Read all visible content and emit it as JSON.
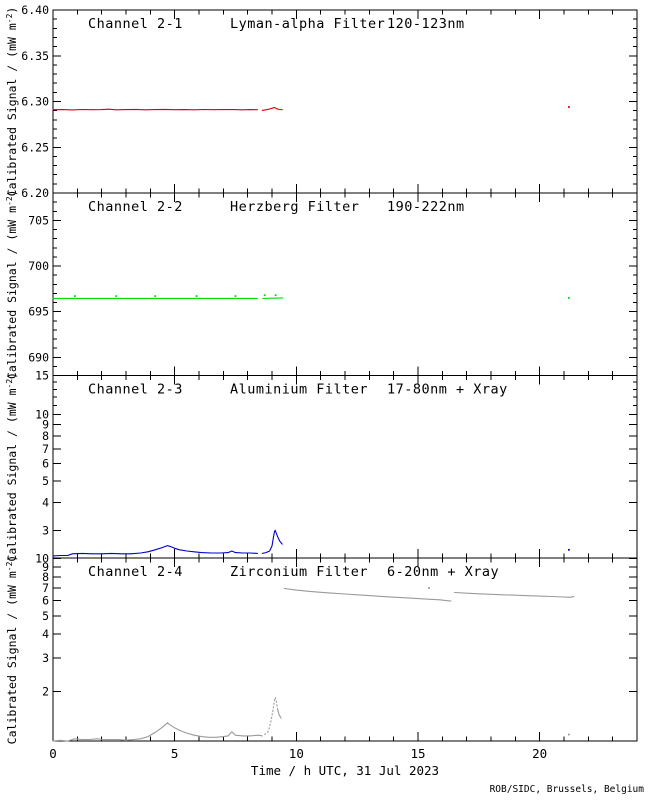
{
  "figure": {
    "xlabel": "Time / h UTC, 31 Jul 2023",
    "credit": "ROB/SIDC, Brussels, Belgium",
    "ylabel_main": "Calibrated Signal / (mW m",
    "ylabel_sup": "-2",
    "ylabel_end": ")",
    "background_color": "#ffffff",
    "axis_color": "#000000",
    "x_range": [
      0,
      24
    ],
    "xticks": [
      {
        "v": 0,
        "label": "0"
      },
      {
        "v": 5,
        "label": "5"
      },
      {
        "v": 10,
        "label": "10"
      },
      {
        "v": 15,
        "label": "15"
      },
      {
        "v": 20,
        "label": "20"
      }
    ]
  },
  "chart_data": [
    {
      "id": "channel-2-1",
      "type": "line",
      "channel": "Channel 2-1",
      "filter": "Lyman-alpha Filter",
      "wavelength": "120-123nm",
      "color": "#dd0000",
      "yscale": "linear",
      "ylim": [
        6.2,
        6.4
      ],
      "yticks": [
        {
          "v": 6.2,
          "label": "6.20"
        },
        {
          "v": 6.25,
          "label": "6.25"
        },
        {
          "v": 6.3,
          "label": "6.30"
        },
        {
          "v": 6.35,
          "label": "6.35"
        },
        {
          "v": 6.4,
          "label": "6.40"
        }
      ],
      "yticks_minor": [
        6.21,
        6.22,
        6.23,
        6.24,
        6.26,
        6.27,
        6.28,
        6.29,
        6.31,
        6.32,
        6.33,
        6.34,
        6.36,
        6.37,
        6.38,
        6.39
      ],
      "series": [
        {
          "name": "pre-gap",
          "style": "solid",
          "points": [
            [
              0,
              6.291
            ],
            [
              0.4,
              6.2912
            ],
            [
              0.8,
              6.2908
            ],
            [
              1.2,
              6.2913
            ],
            [
              1.6,
              6.291
            ],
            [
              2.0,
              6.2912
            ],
            [
              2.3,
              6.2916
            ],
            [
              2.6,
              6.2909
            ],
            [
              3.0,
              6.2911
            ],
            [
              3.4,
              6.2914
            ],
            [
              3.8,
              6.2909
            ],
            [
              4.2,
              6.2912
            ],
            [
              4.6,
              6.2914
            ],
            [
              5.0,
              6.291
            ],
            [
              5.4,
              6.2912
            ],
            [
              5.8,
              6.2909
            ],
            [
              6.2,
              6.2913
            ],
            [
              6.6,
              6.291
            ],
            [
              7.0,
              6.2913
            ],
            [
              7.4,
              6.2911
            ],
            [
              7.8,
              6.2909
            ],
            [
              8.1,
              6.2912
            ],
            [
              8.4,
              6.291
            ]
          ]
        },
        {
          "name": "post-gap",
          "style": "solid",
          "points": [
            [
              8.6,
              6.2903
            ],
            [
              8.8,
              6.2912
            ],
            [
              9.0,
              6.2926
            ],
            [
              9.1,
              6.2934
            ],
            [
              9.2,
              6.292
            ],
            [
              9.3,
              6.2913
            ],
            [
              9.42,
              6.291
            ]
          ]
        }
      ],
      "dots": [
        [
          21.2,
          6.294
        ]
      ]
    },
    {
      "id": "channel-2-2",
      "type": "line",
      "channel": "Channel 2-2",
      "filter": "Herzberg Filter",
      "wavelength": "190-222nm",
      "color": "#00dd00",
      "yscale": "linear",
      "ylim": [
        688,
        708
      ],
      "yticks": [
        {
          "v": 690,
          "label": "690"
        },
        {
          "v": 695,
          "label": "695"
        },
        {
          "v": 700,
          "label": "700"
        },
        {
          "v": 705,
          "label": "705"
        }
      ],
      "yticks_minor": [
        689,
        691,
        692,
        693,
        694,
        696,
        697,
        698,
        699,
        701,
        702,
        703,
        704,
        706,
        707
      ],
      "series": [
        {
          "name": "pre-gap",
          "style": "solid",
          "points": [
            [
              0,
              696.45
            ],
            [
              8.4,
              696.45
            ]
          ]
        },
        {
          "name": "post-gap",
          "style": "solid",
          "points": [
            [
              8.62,
              696.45
            ],
            [
              9.45,
              696.5
            ]
          ]
        }
      ],
      "dots": [
        [
          0.9,
          696.7
        ],
        [
          2.6,
          696.7
        ],
        [
          4.2,
          696.7
        ],
        [
          5.9,
          696.7
        ],
        [
          7.5,
          696.7
        ],
        [
          8.7,
          696.8
        ],
        [
          9.15,
          696.8
        ],
        [
          21.2,
          696.5
        ]
      ]
    },
    {
      "id": "channel-2-3",
      "type": "line",
      "channel": "Channel 2-3",
      "filter": "Aluminium Filter",
      "wavelength": "17-80nm + Xray",
      "color": "#0000cc",
      "yscale": "log",
      "ylim": [
        2.25,
        15
      ],
      "yticks": [
        {
          "v": 3,
          "label": "3"
        },
        {
          "v": 4,
          "label": "4"
        },
        {
          "v": 5,
          "label": "5"
        },
        {
          "v": 6,
          "label": "6"
        },
        {
          "v": 7,
          "label": "7"
        },
        {
          "v": 8,
          "label": "8"
        },
        {
          "v": 9,
          "label": "9"
        },
        {
          "v": 10,
          "label": "10"
        },
        {
          "v": 15,
          "label": "15"
        }
      ],
      "yticks_minor": [
        11,
        12,
        13,
        14
      ],
      "series": [
        {
          "name": "pre-gap",
          "style": "solid",
          "points": [
            [
              0,
              2.3
            ],
            [
              0.3,
              2.31
            ],
            [
              0.6,
              2.31
            ],
            [
              0.8,
              2.35
            ],
            [
              1.2,
              2.36
            ],
            [
              1.6,
              2.35
            ],
            [
              2.0,
              2.35
            ],
            [
              2.4,
              2.36
            ],
            [
              2.8,
              2.35
            ],
            [
              3.2,
              2.35
            ],
            [
              3.6,
              2.37
            ],
            [
              3.9,
              2.4
            ],
            [
              4.2,
              2.45
            ],
            [
              4.5,
              2.51
            ],
            [
              4.7,
              2.56
            ],
            [
              4.8,
              2.54
            ],
            [
              5.0,
              2.49
            ],
            [
              5.2,
              2.45
            ],
            [
              5.5,
              2.42
            ],
            [
              5.8,
              2.4
            ],
            [
              6.1,
              2.38
            ],
            [
              6.5,
              2.37
            ],
            [
              6.9,
              2.37
            ],
            [
              7.2,
              2.38
            ],
            [
              7.35,
              2.42
            ],
            [
              7.5,
              2.38
            ],
            [
              7.8,
              2.37
            ],
            [
              8.1,
              2.37
            ],
            [
              8.4,
              2.36
            ]
          ]
        },
        {
          "name": "flare-spike",
          "style": "solid",
          "points": [
            [
              8.6,
              2.36
            ],
            [
              8.75,
              2.38
            ],
            [
              8.9,
              2.42
            ],
            [
              9.0,
              2.55
            ],
            [
              9.05,
              2.75
            ],
            [
              9.1,
              2.95
            ],
            [
              9.13,
              3.0
            ],
            [
              9.18,
              2.9
            ],
            [
              9.25,
              2.78
            ],
            [
              9.32,
              2.68
            ],
            [
              9.42,
              2.6
            ]
          ]
        }
      ],
      "dots": [
        [
          21.2,
          2.45
        ]
      ]
    },
    {
      "id": "channel-2-4",
      "type": "line",
      "channel": "Channel 2-4",
      "filter": "Zirconium Filter",
      "wavelength": "6-20nm + Xray",
      "color": "#9a9a9a",
      "yscale": "log",
      "ylim": [
        1.1,
        10.05
      ],
      "yticks": [
        {
          "v": 2,
          "label": "2"
        },
        {
          "v": 3,
          "label": "3"
        },
        {
          "v": 4,
          "label": "4"
        },
        {
          "v": 5,
          "label": "5"
        },
        {
          "v": 6,
          "label": "6"
        },
        {
          "v": 7,
          "label": "7"
        },
        {
          "v": 8,
          "label": "8"
        },
        {
          "v": 9,
          "label": "9"
        },
        {
          "v": 10,
          "label": "10"
        }
      ],
      "yticks_minor": [],
      "series": [
        {
          "name": "lower-pre-gap",
          "style": "solid",
          "points": [
            [
              0,
              1.1
            ],
            [
              0.3,
              1.11
            ],
            [
              0.6,
              1.1
            ],
            [
              0.9,
              1.13
            ],
            [
              1.2,
              1.12
            ],
            [
              1.5,
              1.12
            ],
            [
              1.8,
              1.13
            ],
            [
              2.1,
              1.12
            ],
            [
              2.4,
              1.12
            ],
            [
              2.7,
              1.12
            ],
            [
              3.0,
              1.11
            ],
            [
              3.3,
              1.12
            ],
            [
              3.6,
              1.13
            ],
            [
              3.9,
              1.16
            ],
            [
              4.2,
              1.22
            ],
            [
              4.5,
              1.3
            ],
            [
              4.7,
              1.37
            ],
            [
              4.8,
              1.34
            ],
            [
              5.0,
              1.29
            ],
            [
              5.2,
              1.25
            ],
            [
              5.5,
              1.21
            ],
            [
              5.8,
              1.18
            ],
            [
              6.1,
              1.16
            ],
            [
              6.4,
              1.15
            ],
            [
              6.7,
              1.15
            ],
            [
              7.0,
              1.16
            ],
            [
              7.2,
              1.17
            ],
            [
              7.35,
              1.23
            ],
            [
              7.5,
              1.18
            ],
            [
              7.8,
              1.17
            ],
            [
              8.1,
              1.17
            ],
            [
              8.45,
              1.18
            ],
            [
              8.6,
              1.17
            ]
          ]
        },
        {
          "name": "flare-spike-dotted",
          "style": "dotted",
          "points": [
            [
              8.7,
              1.19
            ],
            [
              8.85,
              1.24
            ],
            [
              8.95,
              1.38
            ],
            [
              9.05,
              1.62
            ],
            [
              9.1,
              1.8
            ],
            [
              9.13,
              1.86
            ],
            [
              9.17,
              1.8
            ],
            [
              9.2,
              1.7
            ],
            [
              9.24,
              1.6
            ]
          ]
        },
        {
          "name": "flare-spike-tail",
          "style": "solid",
          "points": [
            [
              9.24,
              1.6
            ],
            [
              9.3,
              1.5
            ],
            [
              9.38,
              1.45
            ]
          ]
        },
        {
          "name": "upper-segment-1",
          "style": "solid",
          "points": [
            [
              9.5,
              6.95
            ],
            [
              10.0,
              6.82
            ],
            [
              10.5,
              6.72
            ],
            [
              11.0,
              6.64
            ],
            [
              11.5,
              6.57
            ],
            [
              12.0,
              6.5
            ],
            [
              12.5,
              6.44
            ],
            [
              13.0,
              6.38
            ],
            [
              13.5,
              6.32
            ],
            [
              14.0,
              6.26
            ],
            [
              14.5,
              6.21
            ],
            [
              15.0,
              6.15
            ],
            [
              15.5,
              6.1
            ],
            [
              15.9,
              6.06
            ],
            [
              16.2,
              6.0
            ],
            [
              16.35,
              5.97
            ]
          ]
        },
        {
          "name": "upper-segment-2",
          "style": "solid",
          "points": [
            [
              16.5,
              6.62
            ],
            [
              17.0,
              6.57
            ],
            [
              17.5,
              6.52
            ],
            [
              18.0,
              6.48
            ],
            [
              18.5,
              6.44
            ],
            [
              19.0,
              6.41
            ],
            [
              19.5,
              6.37
            ],
            [
              20.0,
              6.34
            ],
            [
              20.5,
              6.31
            ],
            [
              21.0,
              6.27
            ],
            [
              21.25,
              6.25
            ],
            [
              21.4,
              6.3
            ]
          ]
        }
      ],
      "dots": [
        [
          15.45,
          7.0
        ],
        [
          21.2,
          1.19
        ]
      ]
    }
  ]
}
